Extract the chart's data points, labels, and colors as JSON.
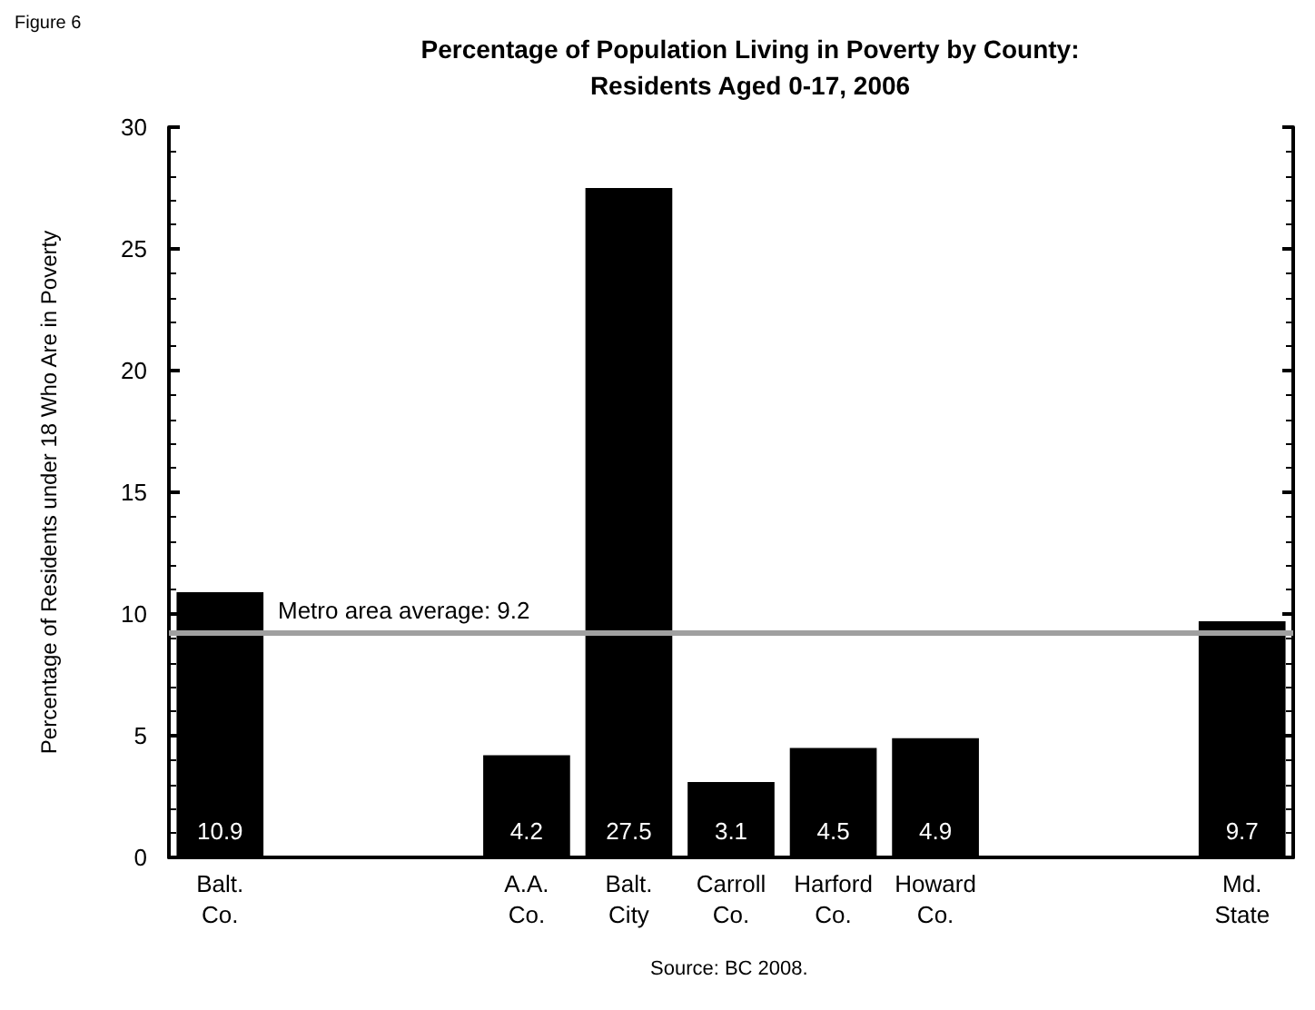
{
  "chart_data": {
    "type": "bar",
    "title": "Percentage of Population Living in Poverty by County:\nResidents Aged 0-17, 2006",
    "ylabel": "Percentage of Residents under 18 Who Are in Poverty",
    "categories": [
      "Balt.\nCo.",
      null,
      null,
      "A.A.\nCo.",
      "Balt.\nCity",
      "Carroll\nCo.",
      "Harford\nCo.",
      "Howard\nCo.",
      null,
      null,
      "Md.\nState"
    ],
    "values": [
      10.9,
      null,
      null,
      4.2,
      27.5,
      3.1,
      4.5,
      4.9,
      null,
      null,
      9.7
    ],
    "color": "#000000",
    "data_labels": true,
    "ylim": [
      0,
      30
    ],
    "yticks": [
      0,
      5,
      10,
      15,
      20,
      25,
      30
    ],
    "grid": false,
    "ref_lines": [
      {
        "axis": "y",
        "value": 9.2,
        "label": "Metro area average: 9.2",
        "color": "#a0a0a0",
        "line_style": "solid"
      }
    ],
    "annotations": [
      "Figure 6",
      "Source: BC 2008."
    ]
  }
}
